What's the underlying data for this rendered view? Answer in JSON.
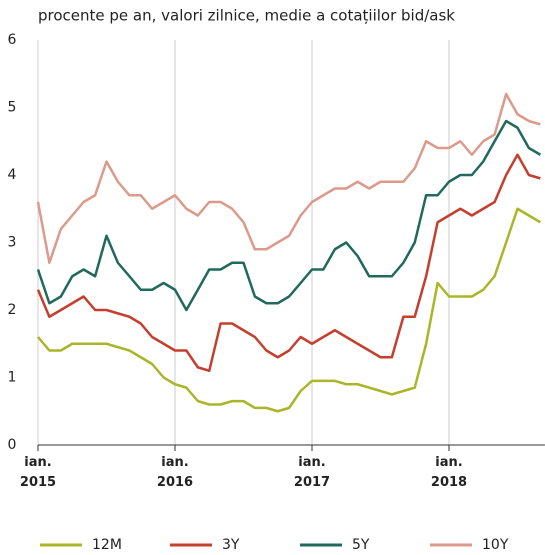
{
  "chart_data": {
    "type": "line",
    "title": "procente pe an, valori zilnice, medie a cotațiilor bid/ask",
    "x": [
      2015,
      2015.083,
      2015.167,
      2015.25,
      2015.333,
      2015.417,
      2015.5,
      2015.583,
      2015.667,
      2015.75,
      2015.833,
      2015.917,
      2016,
      2016.083,
      2016.167,
      2016.25,
      2016.333,
      2016.417,
      2016.5,
      2016.583,
      2016.667,
      2016.75,
      2016.833,
      2016.917,
      2017,
      2017.083,
      2017.167,
      2017.25,
      2017.333,
      2017.417,
      2017.5,
      2017.583,
      2017.667,
      2017.75,
      2017.833,
      2017.917,
      2018,
      2018.083,
      2018.167,
      2018.25,
      2018.333,
      2018.417,
      2018.5,
      2018.583,
      2018.667
    ],
    "series": [
      {
        "name": "12M",
        "color": "#abb52a",
        "values": [
          1.6,
          1.4,
          1.4,
          1.5,
          1.5,
          1.5,
          1.5,
          1.45,
          1.4,
          1.3,
          1.2,
          1.0,
          0.9,
          0.85,
          0.65,
          0.6,
          0.6,
          0.65,
          0.65,
          0.55,
          0.55,
          0.5,
          0.55,
          0.8,
          0.95,
          0.95,
          0.95,
          0.9,
          0.9,
          0.85,
          0.8,
          0.75,
          0.8,
          0.85,
          1.5,
          2.4,
          2.2,
          2.2,
          2.2,
          2.3,
          2.5,
          3.0,
          3.5,
          3.4,
          3.3
        ]
      },
      {
        "name": "3Y",
        "color": "#c43f2e",
        "values": [
          2.3,
          1.9,
          2.0,
          2.1,
          2.2,
          2.0,
          2.0,
          1.95,
          1.9,
          1.8,
          1.6,
          1.5,
          1.4,
          1.4,
          1.15,
          1.1,
          1.8,
          1.8,
          1.7,
          1.6,
          1.4,
          1.3,
          1.4,
          1.6,
          1.5,
          1.6,
          1.7,
          1.6,
          1.5,
          1.4,
          1.3,
          1.3,
          1.9,
          1.9,
          2.5,
          3.3,
          3.4,
          3.5,
          3.4,
          3.5,
          3.6,
          4.0,
          4.3,
          4.0,
          3.95
        ]
      },
      {
        "name": "5Y",
        "color": "#20695c",
        "values": [
          2.6,
          2.1,
          2.2,
          2.5,
          2.6,
          2.5,
          3.1,
          2.7,
          2.5,
          2.3,
          2.3,
          2.4,
          2.3,
          2.0,
          2.3,
          2.6,
          2.6,
          2.7,
          2.7,
          2.2,
          2.1,
          2.1,
          2.2,
          2.4,
          2.6,
          2.6,
          2.9,
          3.0,
          2.8,
          2.5,
          2.5,
          2.5,
          2.7,
          3.0,
          3.7,
          3.7,
          3.9,
          4.0,
          4.0,
          4.2,
          4.5,
          4.8,
          4.7,
          4.4,
          4.3
        ]
      },
      {
        "name": "10Y",
        "color": "#dc9a8b",
        "values": [
          3.6,
          2.7,
          3.2,
          3.4,
          3.6,
          3.7,
          4.2,
          3.9,
          3.7,
          3.7,
          3.5,
          3.6,
          3.7,
          3.5,
          3.4,
          3.6,
          3.6,
          3.5,
          3.3,
          2.9,
          2.9,
          3.0,
          3.1,
          3.4,
          3.6,
          3.7,
          3.8,
          3.8,
          3.9,
          3.8,
          3.9,
          3.9,
          3.9,
          4.1,
          4.5,
          4.4,
          4.4,
          4.5,
          4.3,
          4.5,
          4.6,
          5.2,
          4.9,
          4.8,
          4.75
        ]
      }
    ],
    "xlim": [
      2015,
      2018.7
    ],
    "xticks": [
      {
        "value": 2015,
        "label": "ian.\n2015"
      },
      {
        "value": 2016,
        "label": "ian.\n2016"
      },
      {
        "value": 2017,
        "label": "ian.\n2017"
      },
      {
        "value": 2018,
        "label": "ian.\n2018"
      }
    ],
    "ylim": [
      0,
      6
    ],
    "yticks": [
      0,
      1,
      2,
      3,
      4,
      5,
      6
    ],
    "grid": true,
    "legend": "bottom"
  }
}
